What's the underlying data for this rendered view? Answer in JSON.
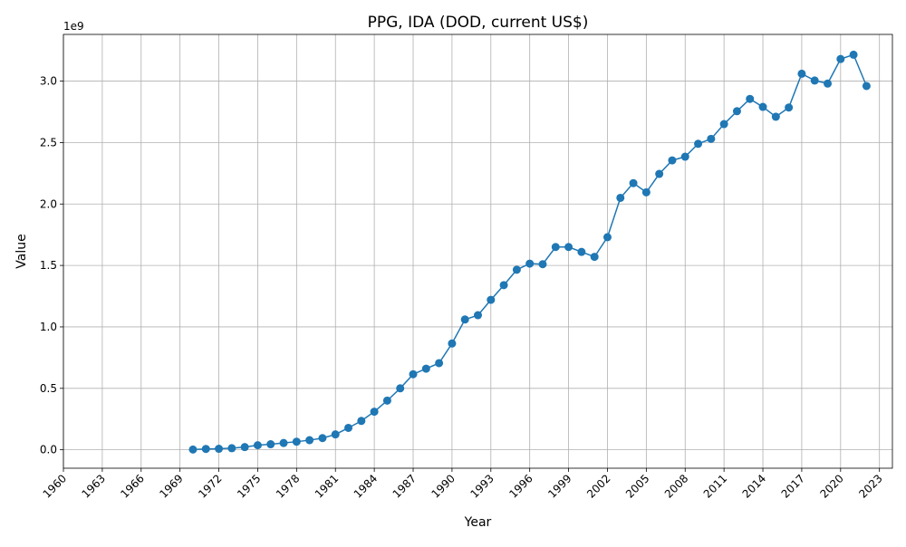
{
  "chart_data": {
    "type": "line",
    "title": "PPG, IDA (DOD, current US$)",
    "xlabel": "Year",
    "ylabel": "Value",
    "y_offset_label": "1e9",
    "xlim": [
      1960,
      2024
    ],
    "ylim": [
      -0.15,
      3.38
    ],
    "y_scale_multiplier": 1000000000,
    "grid": true,
    "marker": "circle",
    "line_color": "#1f77b4",
    "x_ticks": [
      1960,
      1963,
      1966,
      1969,
      1972,
      1975,
      1978,
      1981,
      1984,
      1987,
      1990,
      1993,
      1996,
      1999,
      2002,
      2005,
      2008,
      2011,
      2014,
      2017,
      2020,
      2023
    ],
    "x_tick_labels": [
      "1960",
      "1963",
      "1966",
      "1969",
      "1972",
      "1975",
      "1978",
      "1981",
      "1984",
      "1987",
      "1990",
      "1993",
      "1996",
      "1999",
      "2002",
      "2005",
      "2008",
      "2011",
      "2014",
      "2017",
      "2020",
      "2023"
    ],
    "y_ticks": [
      0.0,
      0.5,
      1.0,
      1.5,
      2.0,
      2.5,
      3.0
    ],
    "y_tick_labels": [
      "0.0",
      "0.5",
      "1.0",
      "1.5",
      "2.0",
      "2.5",
      "3.0"
    ],
    "x": [
      1970,
      1971,
      1972,
      1973,
      1974,
      1975,
      1976,
      1977,
      1978,
      1979,
      1980,
      1981,
      1982,
      1983,
      1984,
      1985,
      1986,
      1987,
      1988,
      1989,
      1990,
      1991,
      1992,
      1993,
      1994,
      1995,
      1996,
      1997,
      1998,
      1999,
      2000,
      2001,
      2002,
      2003,
      2004,
      2005,
      2006,
      2007,
      2008,
      2009,
      2010,
      2011,
      2012,
      2013,
      2014,
      2015,
      2016,
      2017,
      2018,
      2019,
      2020,
      2021,
      2022
    ],
    "y": [
      0.002,
      0.007,
      0.008,
      0.013,
      0.022,
      0.037,
      0.045,
      0.055,
      0.066,
      0.078,
      0.095,
      0.125,
      0.178,
      0.235,
      0.31,
      0.4,
      0.5,
      0.615,
      0.66,
      0.705,
      0.865,
      1.06,
      1.095,
      1.22,
      1.34,
      1.465,
      1.515,
      1.51,
      1.65,
      1.65,
      1.61,
      1.57,
      1.73,
      2.05,
      2.17,
      2.095,
      2.245,
      2.355,
      2.385,
      2.49,
      2.53,
      2.65,
      2.755,
      2.855,
      2.79,
      2.71,
      2.785,
      3.06,
      3.005,
      2.98,
      3.18,
      3.215,
      2.96
    ]
  }
}
